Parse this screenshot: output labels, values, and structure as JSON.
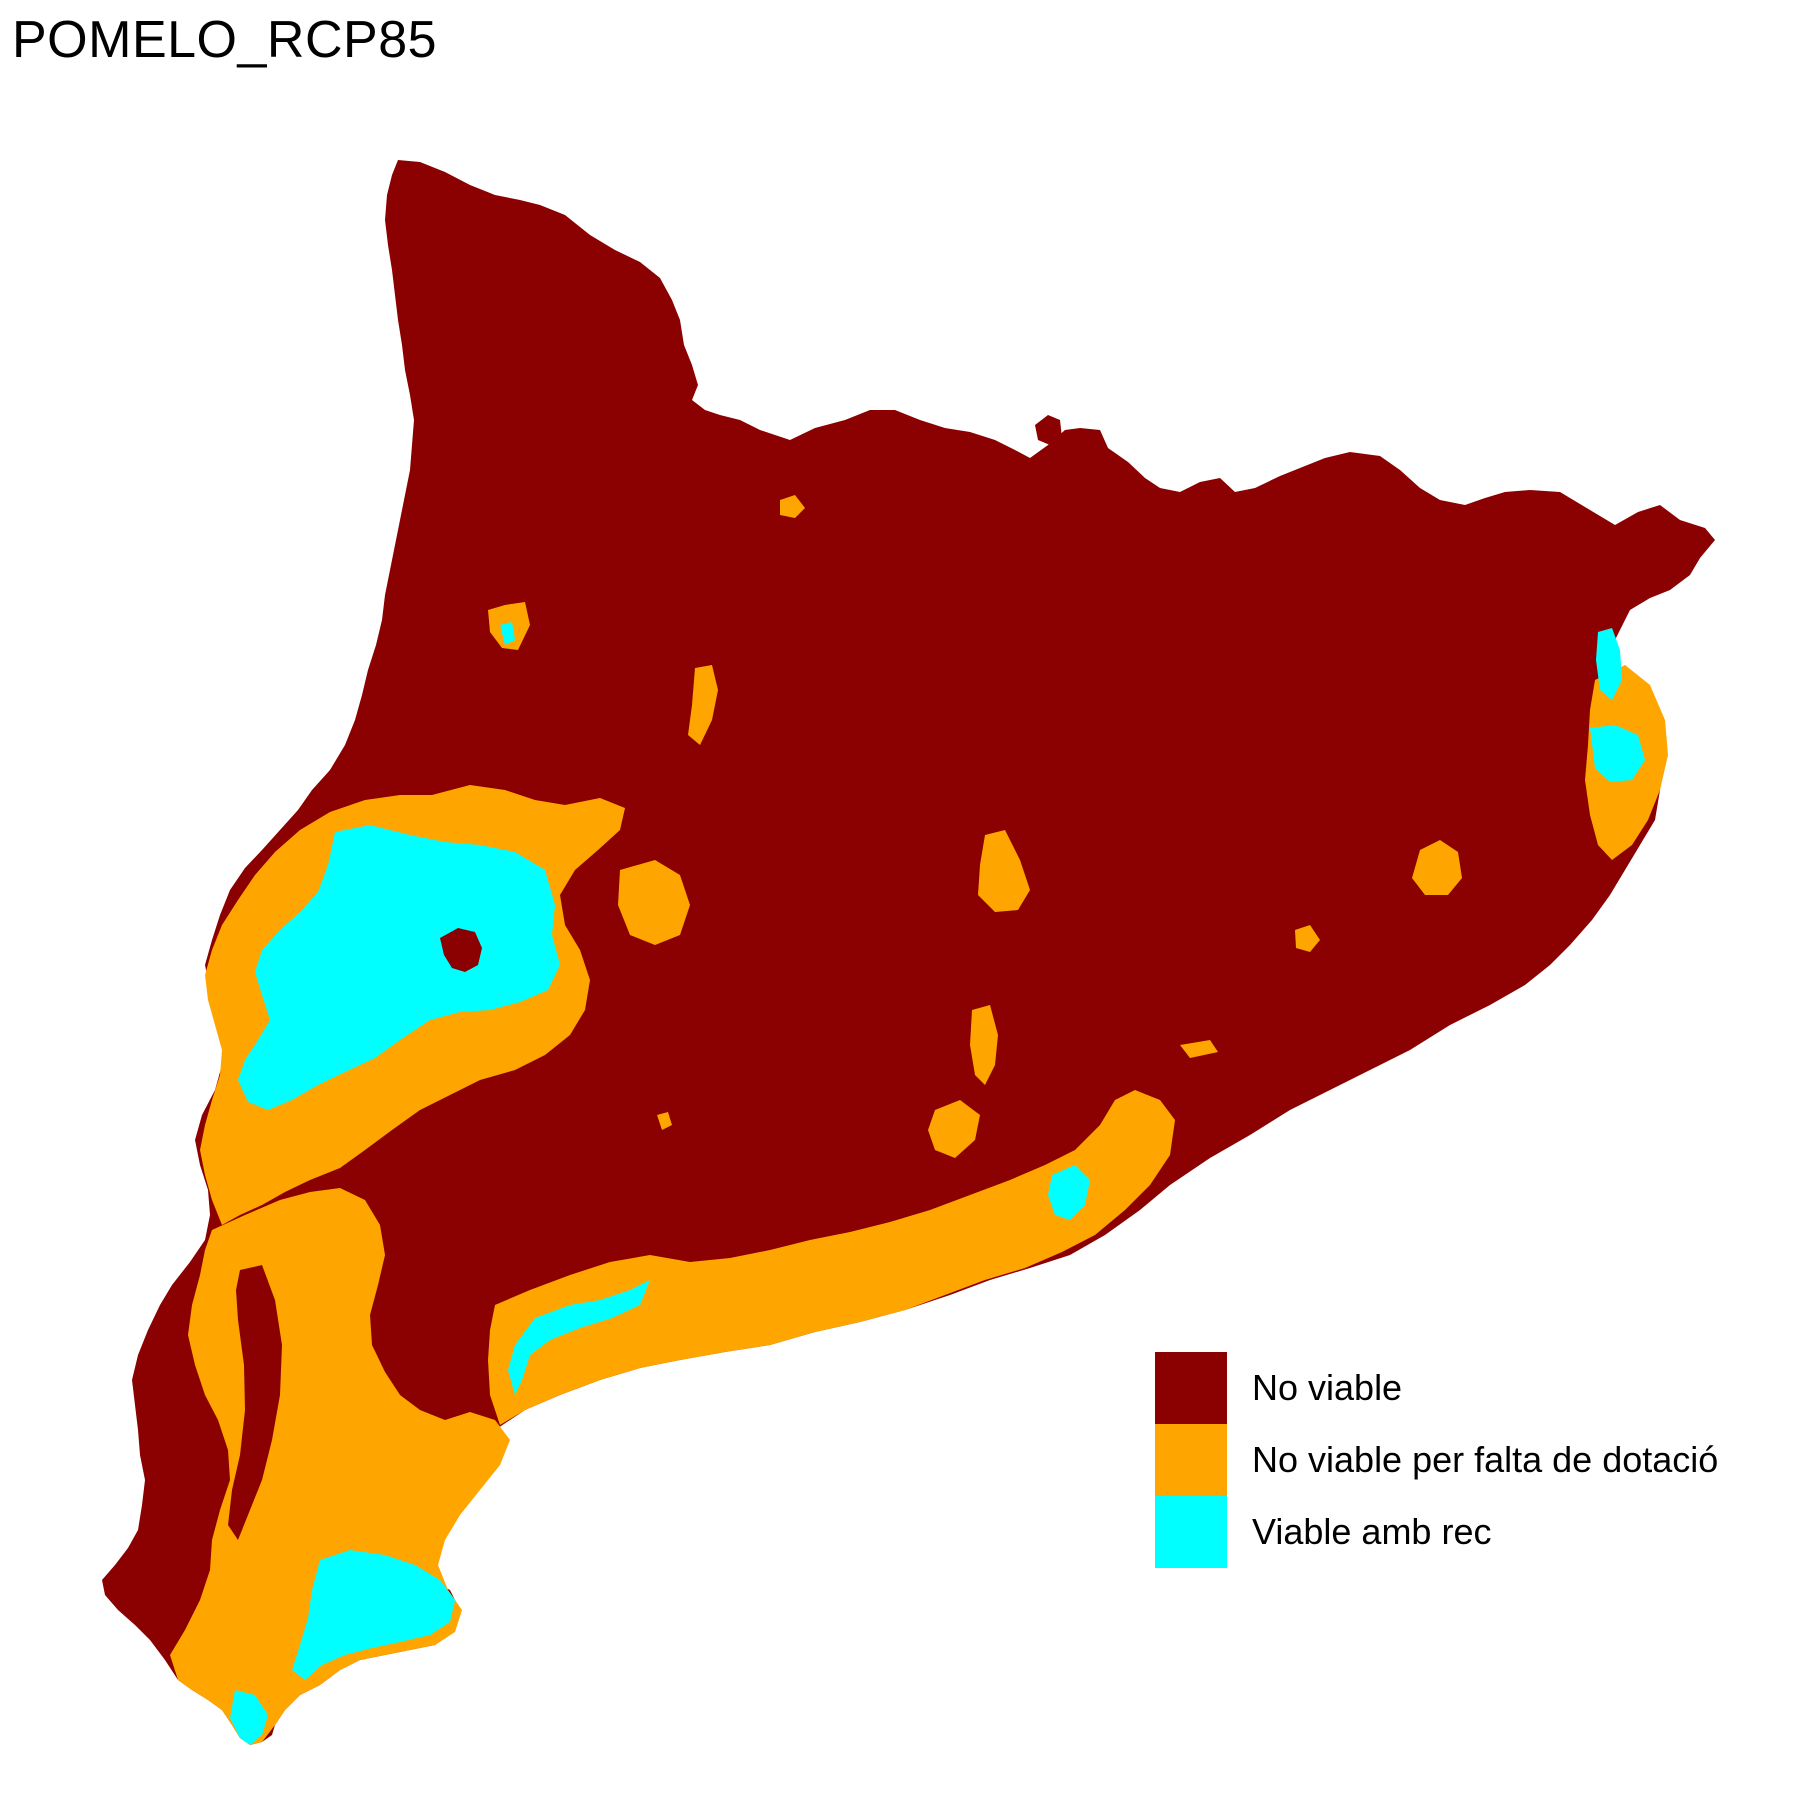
{
  "title": "POMELO_RCP85",
  "colors": {
    "no_viable": "#8b0000",
    "no_viable_dotacio": "#ffa500",
    "viable_rec": "#00ffff",
    "background": "#ffffff"
  },
  "legend": [
    {
      "label": "No viable",
      "color": "#8b0000"
    },
    {
      "label": "No viable per falta de dotació",
      "color": "#ffa500"
    },
    {
      "label": "Viable amb rec",
      "color": "#00ffff"
    }
  ]
}
